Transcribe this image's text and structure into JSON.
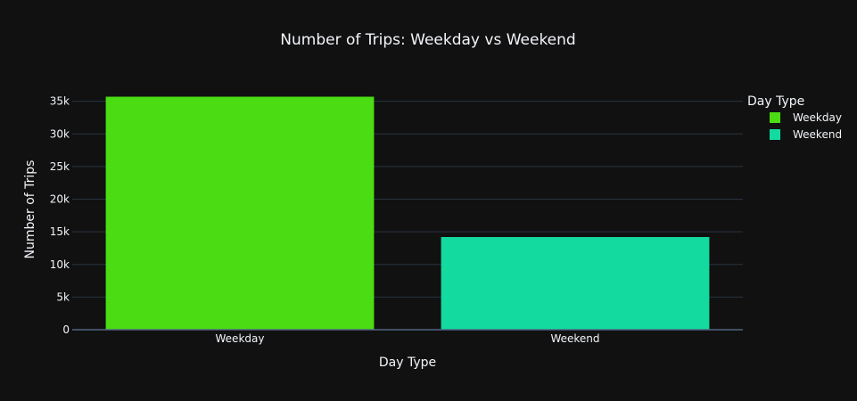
{
  "chart_data": {
    "type": "bar",
    "title": "Number of Trips: Weekday vs Weekend",
    "xlabel": "Day Type",
    "ylabel": "Number of Trips",
    "categories": [
      "Weekday",
      "Weekend"
    ],
    "values": [
      35700,
      14200
    ],
    "bar_colors": [
      "#4cdc13",
      "#13dba0"
    ],
    "ylim": [
      0,
      37000
    ],
    "y_ticks": [
      0,
      5000,
      10000,
      15000,
      20000,
      25000,
      30000,
      35000
    ],
    "y_tick_labels": [
      "0",
      "5k",
      "10k",
      "15k",
      "20k",
      "25k",
      "30k",
      "35k"
    ],
    "grid": true,
    "legend": {
      "title": "Day Type",
      "placement": "top-right",
      "entries": [
        {
          "label": "Weekday",
          "color": "#4cdc13"
        },
        {
          "label": "Weekend",
          "color": "#13dba0"
        }
      ]
    }
  },
  "colors": {
    "background": "#111111",
    "grid": "#283442",
    "text": "#f2f5fa"
  }
}
